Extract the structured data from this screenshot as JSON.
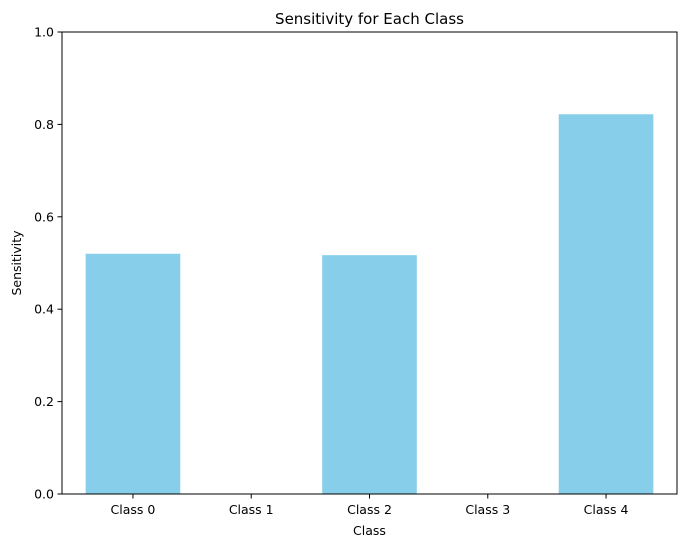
{
  "chart_data": {
    "type": "bar",
    "title": "Sensitivity for Each Class",
    "xlabel": "Class",
    "ylabel": "Sensitivity",
    "categories": [
      "Class 0",
      "Class 1",
      "Class 2",
      "Class 3",
      "Class 4"
    ],
    "values": [
      0.52,
      0.0,
      0.517,
      0.0,
      0.822
    ],
    "ylim": [
      0,
      1
    ],
    "yticks": [
      "0.0",
      "0.2",
      "0.4",
      "0.6",
      "0.8",
      "1.0"
    ],
    "ytick_values": [
      0,
      0.2,
      0.4,
      0.6,
      0.8,
      1.0
    ],
    "bar_color": "#87ceeb",
    "grid": false,
    "legend": "none"
  }
}
